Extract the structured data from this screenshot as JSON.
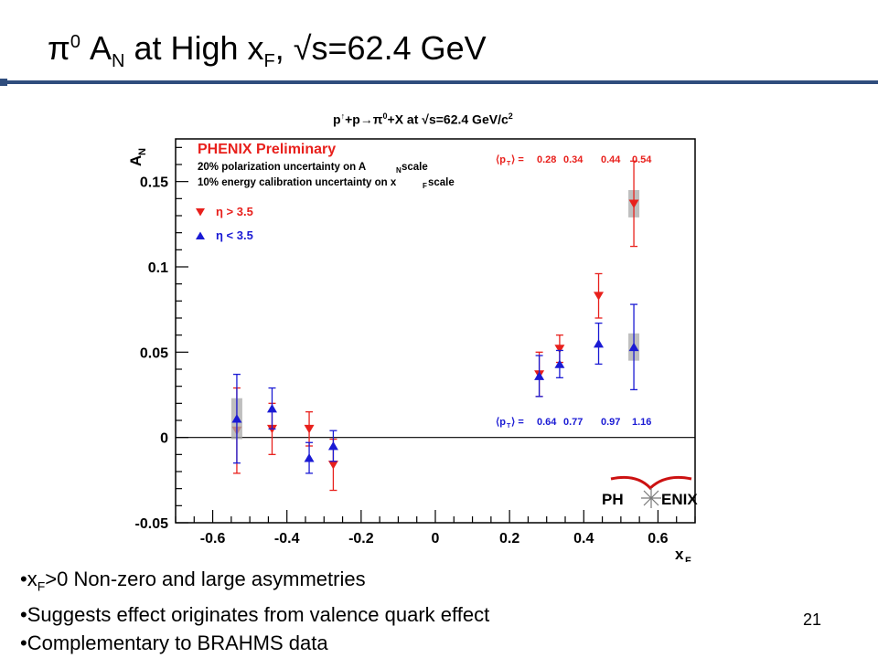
{
  "slide": {
    "title_prefix": "π",
    "title_sup": "0",
    "title_a": " A",
    "title_sub_n": "N",
    "title_mid": " at High x",
    "title_sub_f": "F",
    "title_end": ", √s=62.4 GeV",
    "number": "21"
  },
  "caption": {
    "p": "p",
    "arrow": "↑",
    "mid": "+p→π",
    "sup0": "0",
    "rest": "+X at √s=62.4 GeV/c",
    "sup2": "2"
  },
  "bullets": [
    {
      "prefix": "•x",
      "sub": "F",
      "text": ">0 Non-zero and large asymmetries"
    },
    {
      "prefix": "•",
      "sub": "",
      "text": "Suggests effect originates from valence quark effect"
    },
    {
      "prefix": "•",
      "sub": "",
      "text": "Complementary to BRAHMS data"
    }
  ],
  "logo": {
    "text_left": "PH",
    "text_right": "ENIX"
  },
  "chart_data": {
    "type": "scatter",
    "xlabel": "x",
    "xlabel_sub": "F",
    "ylabel": "A",
    "ylabel_sub": "N",
    "xlim": [
      -0.7,
      0.7
    ],
    "ylim": [
      -0.05,
      0.175
    ],
    "x_ticks": [
      -0.6,
      -0.4,
      -0.2,
      0,
      0.2,
      0.4,
      0.6
    ],
    "x_tick_labels": [
      "-0.6",
      "-0.4",
      "-0.2",
      "0",
      "0.2",
      "0.4",
      "0.6"
    ],
    "y_ticks": [
      -0.05,
      0,
      0.05,
      0.1,
      0.15
    ],
    "y_tick_labels": [
      "-0.05",
      "0",
      "0.05",
      "0.1",
      "0.15"
    ],
    "zero_line": true,
    "annotations": {
      "header": "PHENIX Preliminary",
      "line1": "20% polarization uncertainty on A",
      "line1_sub": "N",
      "line1_end": " scale",
      "line2": "10% energy calibration uncertainty on x",
      "line2_sub": "F",
      "line2_end": " scale",
      "pt_top_label": "⟨p",
      "pt_sub": "T",
      "pt_label_end": "⟩ = ",
      "pt_top_values": [
        "0.28",
        "0.34",
        "0.44",
        "0.54"
      ],
      "pt_bottom_values": [
        "0.64",
        "0.77",
        "0.97",
        "1.16"
      ]
    },
    "series": [
      {
        "name": "η > 3.5",
        "color": "#e8201c",
        "marker": "triangle-down",
        "points": [
          {
            "x": -0.535,
            "y": 0.004,
            "err": 0.025,
            "sys": 0.0
          },
          {
            "x": -0.44,
            "y": 0.005,
            "err": 0.015,
            "sys": 0.0
          },
          {
            "x": -0.34,
            "y": 0.005,
            "err": 0.01,
            "sys": 0.0
          },
          {
            "x": -0.275,
            "y": -0.016,
            "err": 0.015,
            "sys": 0.0
          },
          {
            "x": 0.28,
            "y": 0.037,
            "err": 0.013,
            "sys": 0.0
          },
          {
            "x": 0.335,
            "y": 0.052,
            "err": 0.008,
            "sys": 0.0
          },
          {
            "x": 0.44,
            "y": 0.083,
            "err": 0.013,
            "sys": 0.0
          },
          {
            "x": 0.535,
            "y": 0.137,
            "err": 0.025,
            "sys": 0.008
          }
        ]
      },
      {
        "name": "η < 3.5",
        "color": "#1a1ad4",
        "marker": "triangle-up",
        "points": [
          {
            "x": -0.535,
            "y": 0.011,
            "err": 0.026,
            "sys": 0.012
          },
          {
            "x": -0.44,
            "y": 0.017,
            "err": 0.012,
            "sys": 0.0
          },
          {
            "x": -0.34,
            "y": -0.012,
            "err": 0.009,
            "sys": 0.0
          },
          {
            "x": -0.275,
            "y": -0.005,
            "err": 0.009,
            "sys": 0.0
          },
          {
            "x": 0.28,
            "y": 0.036,
            "err": 0.012,
            "sys": 0.0
          },
          {
            "x": 0.335,
            "y": 0.043,
            "err": 0.008,
            "sys": 0.0
          },
          {
            "x": 0.44,
            "y": 0.055,
            "err": 0.012,
            "sys": 0.0
          },
          {
            "x": 0.535,
            "y": 0.053,
            "err": 0.025,
            "sys": 0.008
          }
        ]
      }
    ]
  }
}
